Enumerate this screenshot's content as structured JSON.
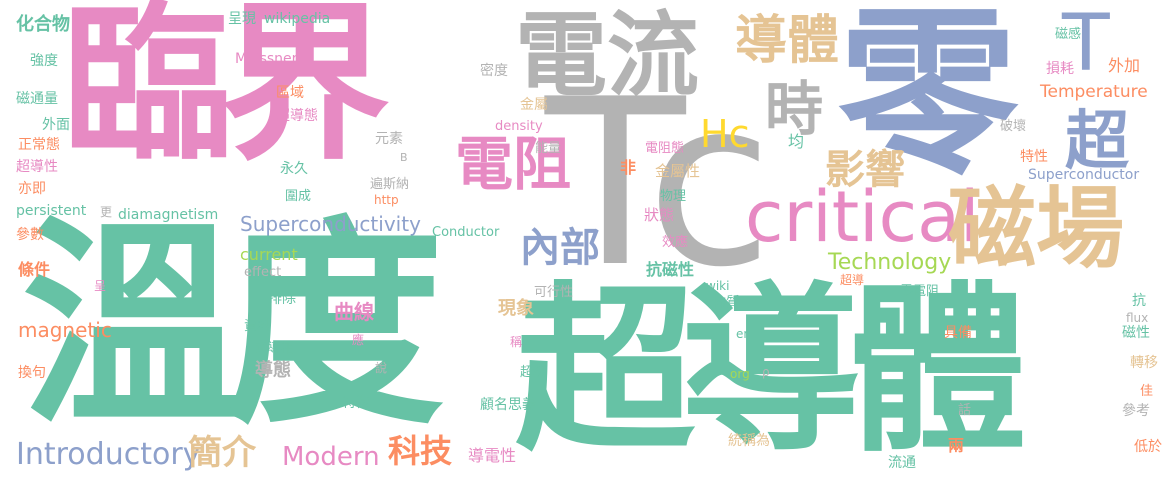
{
  "palette": {
    "green": "#66c2a5",
    "pink": "#e78ac3",
    "gray": "#b3b3b3",
    "blue": "#8da0cb",
    "orange": "#fc8d62",
    "tan": "#e5c494",
    "lime": "#a6d854",
    "yellow": "#ffd92f"
  },
  "words": {
    "lin_jie": "臨界",
    "ling": "零",
    "wen_du": "溫度",
    "chao_dao_ti_big": "超導體",
    "tc": "Tc",
    "dian_liu": "電流",
    "dao_ti": "導體",
    "shi": "時",
    "t": "T",
    "hc": "Hc",
    "chao": "超",
    "critical": "critical",
    "ci_chang": "磁場",
    "dian_zu": "電阻",
    "nei_bu": "內部",
    "ying_xiang": "影響",
    "technology": "Technology",
    "superconductivity": "Superconductivity",
    "introductory": "Introductory",
    "jian_jie": "簡介",
    "modern": "Modern",
    "ke_ji": "科技",
    "temperature": "Temperature",
    "magnetic": "magnetic",
    "superconductor": "Superconductor",
    "hua_he_wu": "化合物",
    "cheng_xian": "呈現",
    "wikipedia": "wikipedia",
    "meissner": "Meissner",
    "qiang_du": "強度",
    "mi_du": "密度",
    "ci_tong_liang": "磁通量",
    "qu_yu": "區域",
    "wai_mian": "外面",
    "chao_dao_tai": "超導態",
    "jin_shu": "金屬",
    "zheng_chang_tai": "正常態",
    "yuan_su": "元素",
    "density": "density",
    "chao_dao_xing": "超導性",
    "b": "B",
    "neng_liang": "能量",
    "yong_jiu": "永久",
    "yi_ji": "亦即",
    "persistent": "persistent",
    "geng": "更",
    "diamagnetism": "diamagnetism",
    "wei_cheng": "圍成",
    "tong_si_na": "遍斯納",
    "can_shu": "參數",
    "conductor": "Conductor",
    "tiao_jian": "條件",
    "current": "current",
    "effect": "effect",
    "cheng": "呈",
    "pai_chu": "排除",
    "qu_xian": "曲線",
    "ke_xing_xing": "可行性",
    "xian_xiang": "現象",
    "zi_liao": "資料",
    "ying": "應",
    "chao_dao_xiang": "超導相",
    "dao_tai": "導態",
    "shuo": "說",
    "http": "http",
    "huan_ju": "換句",
    "chao_ji": "超級",
    "cheng_wei": "稱",
    "te_zheng": "特徵",
    "gu_ming_si_yi": "顧名思義",
    "dao_dian_xing": "導電性",
    "zhong": "中",
    "org": "org",
    "en": "en",
    "rho": "ρ",
    "tong_cheng_wei": "統稱為",
    "liang": "兩",
    "liu_tong": "流通",
    "di_yu": "低於",
    "can_kao": "參考",
    "jia": "佳",
    "zhuan_yi": "轉移",
    "hua": "話",
    "ci_xing": "磁性",
    "kang": "抗",
    "flux": "flux",
    "ju_bei": "具備",
    "ling_dian_zu": "零電阻",
    "chao_dao": "超導",
    "wiki": "wiki",
    "kang_ci_xing": "抗磁性",
    "wu_zhi": "物質",
    "xiao_ying": "效應",
    "zhuang_tai": "狀態",
    "wu_li": "物理",
    "jin_shu_xing": "金屬性",
    "dian_zu_tai": "電阻態",
    "jun": "均",
    "fei": "非",
    "te_xing": "特性",
    "po_huai": "破壞",
    "sun_hao": "損耗",
    "wai_jia": "外加",
    "ci_gan": "磁感"
  }
}
